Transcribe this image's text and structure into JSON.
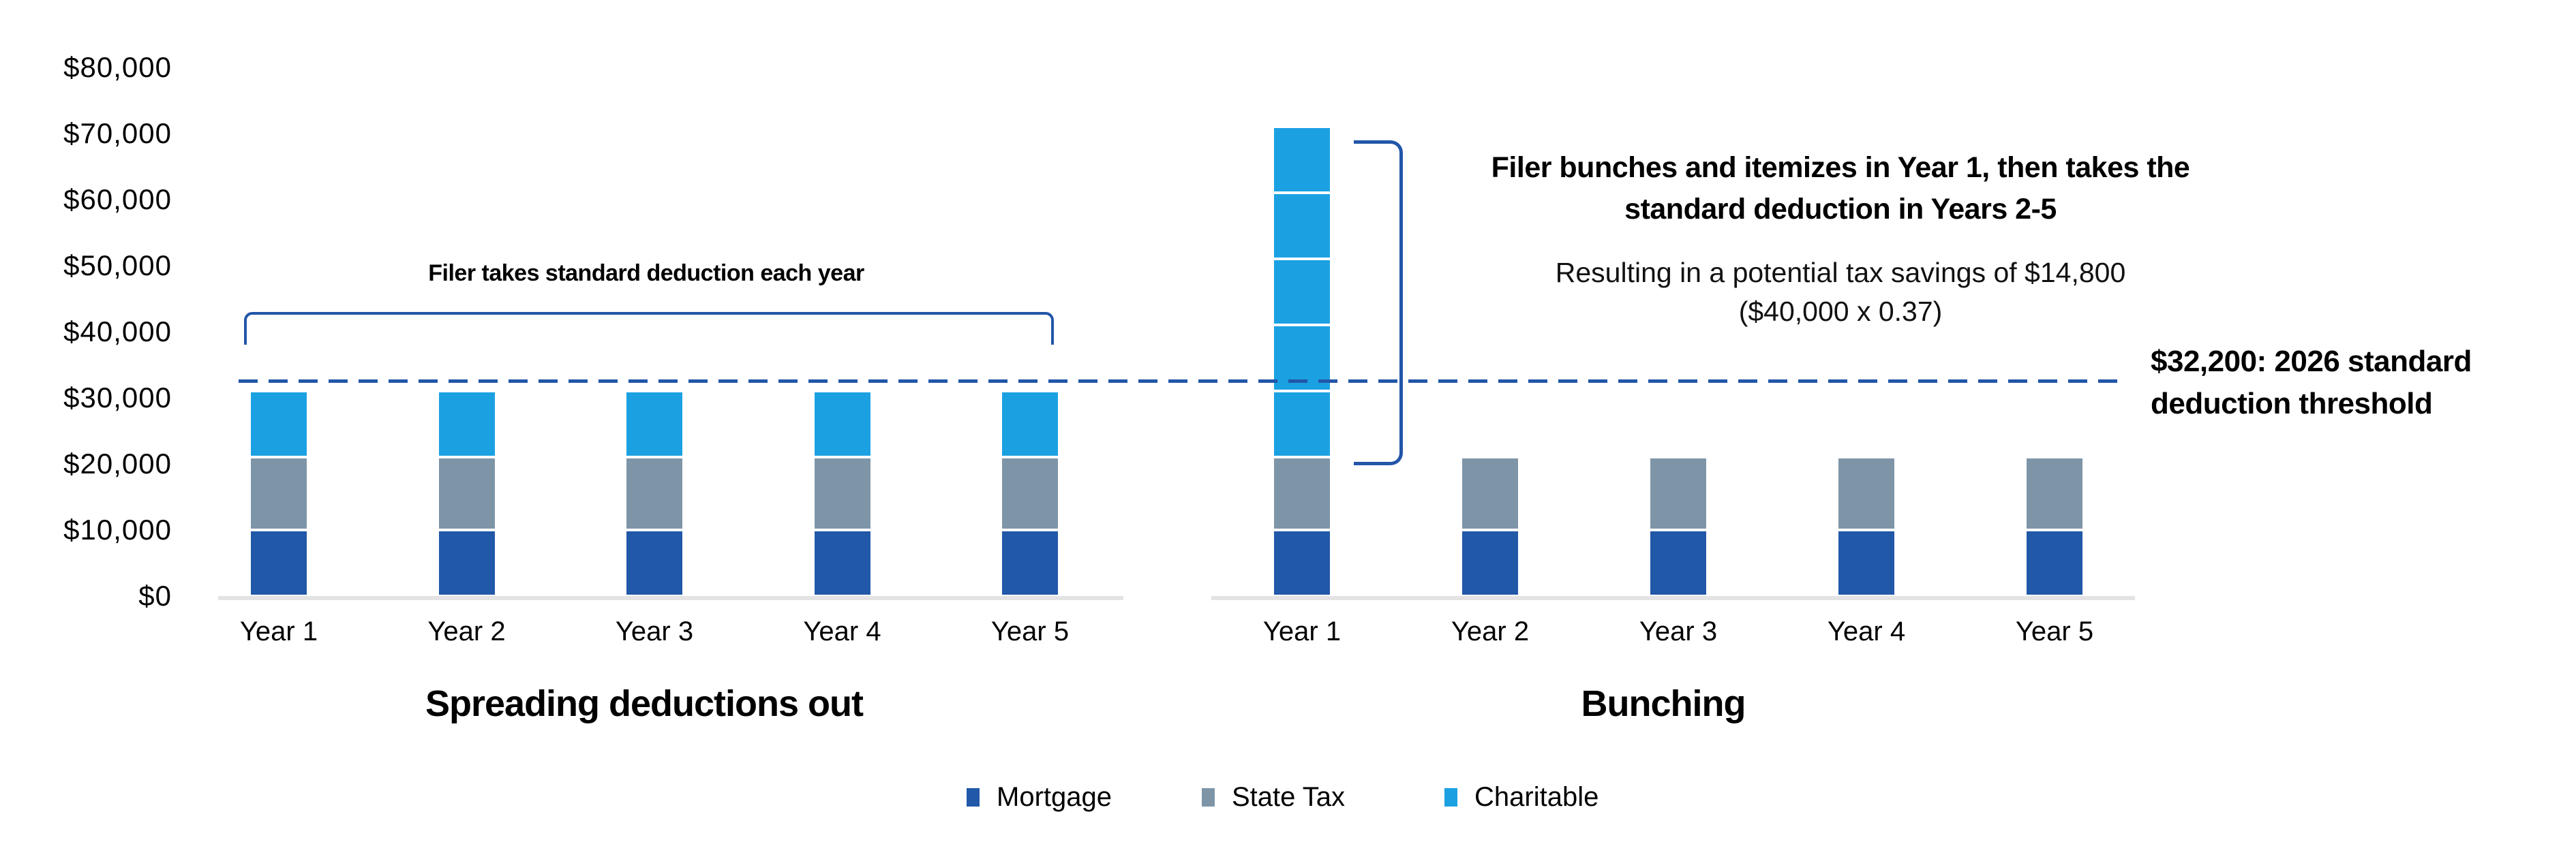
{
  "colors": {
    "accent_blue": "#2256A9",
    "mortgage": "#2158A8",
    "state_tax": "#7E95A8",
    "charitable": "#1BA1E2",
    "axis_line": "#E3E3E3"
  },
  "y_axis": {
    "ticks": [
      {
        "value": 80000,
        "label": "$80,000"
      },
      {
        "value": 70000,
        "label": "$70,000"
      },
      {
        "value": 60000,
        "label": "$60,000"
      },
      {
        "value": 50000,
        "label": "$50,000"
      },
      {
        "value": 40000,
        "label": "$40,000"
      },
      {
        "value": 30000,
        "label": "$30,000"
      },
      {
        "value": 20000,
        "label": "$20,000"
      },
      {
        "value": 10000,
        "label": "$10,000"
      },
      {
        "value": 0,
        "label": "$0"
      }
    ]
  },
  "chart_data": [
    {
      "type": "bar",
      "stacked": true,
      "title": "Spreading deductions out",
      "categories": [
        "Year 1",
        "Year 2",
        "Year 3",
        "Year 4",
        "Year 5"
      ],
      "series": [
        {
          "name": "Mortgage",
          "color": "#2158A8",
          "values": [
            10000,
            10000,
            10000,
            10000,
            10000
          ]
        },
        {
          "name": "State Tax",
          "color": "#7E95A8",
          "values": [
            11000,
            11000,
            11000,
            11000,
            11000
          ]
        },
        {
          "name": "Charitable",
          "color": "#1BA1E2",
          "values": [
            10000,
            10000,
            10000,
            10000,
            10000
          ]
        }
      ],
      "ylim": [
        0,
        80000
      ],
      "grid": false,
      "annotation": "Filer takes standard deduction each year"
    },
    {
      "type": "bar",
      "stacked": true,
      "title": "Bunching",
      "categories": [
        "Year 1",
        "Year 2",
        "Year 3",
        "Year 4",
        "Year 5"
      ],
      "series": [
        {
          "name": "Mortgage",
          "color": "#2158A8",
          "values": [
            10000,
            10000,
            10000,
            10000,
            10000
          ]
        },
        {
          "name": "State Tax",
          "color": "#7E95A8",
          "values": [
            11000,
            11000,
            11000,
            11000,
            11000
          ]
        },
        {
          "name": "Charitable",
          "color": "#1BA1E2",
          "values": [
            50000,
            0,
            0,
            0,
            0
          ],
          "segment_size": 10000
        }
      ],
      "ylim": [
        0,
        80000
      ],
      "grid": false
    }
  ],
  "annotations": {
    "left_bracket_label": "Filer takes standard deduction each year",
    "bunching_bold_line1": "Filer bunches and itemizes in Year 1, then takes the",
    "bunching_bold_line2": "standard deduction in Years 2-5",
    "savings_line1": "Resulting in a potential tax savings of $14,800",
    "savings_line2": "($40,000 x 0.37)",
    "threshold_value": 32200,
    "threshold_label_line1": "$32,200: 2026 standard",
    "threshold_label_line2": "deduction threshold"
  },
  "legend": {
    "items": [
      {
        "label": "Mortgage",
        "color": "#2158A8"
      },
      {
        "label": "State Tax",
        "color": "#7E95A8"
      },
      {
        "label": "Charitable",
        "color": "#1BA1E2"
      }
    ]
  }
}
